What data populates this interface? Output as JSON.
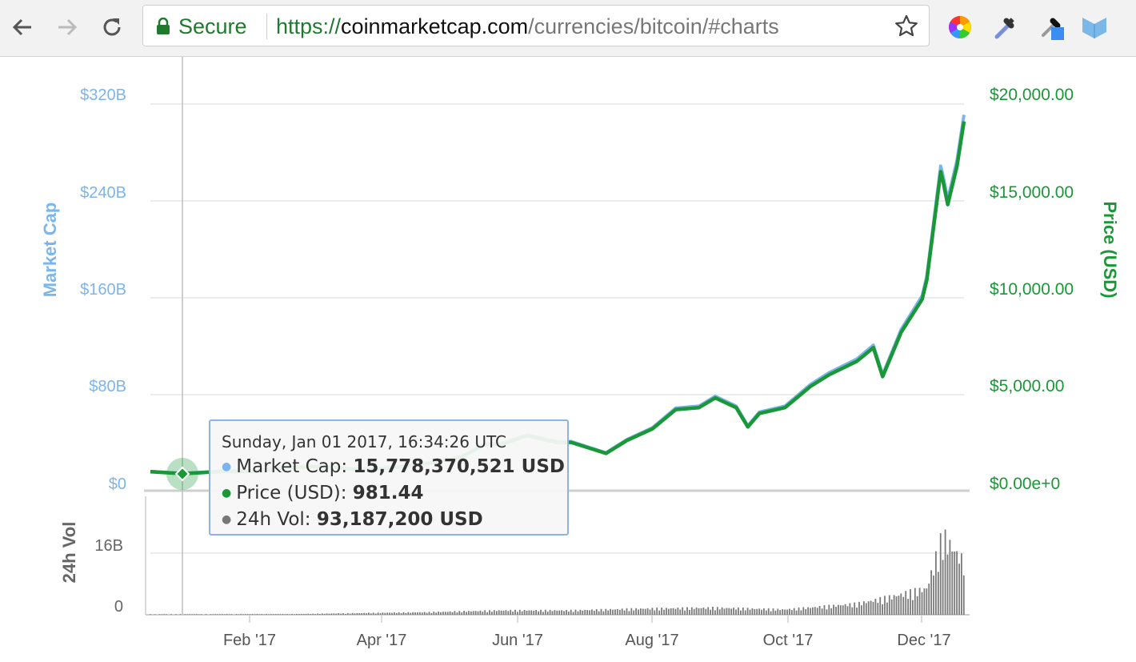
{
  "browser": {
    "secure_label": "Secure",
    "url_scheme": "https://",
    "url_host": "coinmarketcap.com",
    "url_path": "/currencies/bitcoin/#charts",
    "icons": [
      "back-icon",
      "forward-icon",
      "reload-icon",
      "lock-icon",
      "star-icon",
      "color-wheel-icon",
      "eyedropper-icon",
      "color-picker-icon",
      "bookmark-shield-icon"
    ]
  },
  "chart": {
    "left_axis_title": "Market Cap",
    "right_axis_title": "Price (USD)",
    "volume_axis_title": "24h Vol",
    "left_ticks": [
      "$320B",
      "$240B",
      "$160B",
      "$80B",
      "$0"
    ],
    "right_ticks": [
      "$20,000.00",
      "$15,000.00",
      "$10,000.00",
      "$5,000.00",
      "$0.00e+0"
    ],
    "volume_ticks": [
      "16B",
      "0"
    ],
    "x_ticks": [
      "Feb '17",
      "Apr '17",
      "Jun '17",
      "Aug '17",
      "Oct '17",
      "Dec '17"
    ],
    "colors": {
      "market_cap": "#7cb5ec",
      "price": "#1a9837",
      "volume": "#7a7a7a",
      "market_cap_axis": "#7cb5ec",
      "price_axis": "#1a9837"
    }
  },
  "tooltip": {
    "date": "Sunday, Jan 01 2017, 16:34:26 UTC",
    "market_cap_label": "Market Cap:",
    "market_cap_value": "15,778,370,521 USD",
    "price_label": "Price (USD):",
    "price_value": "981.44",
    "volume_label": "24h Vol:",
    "volume_value": "93,187,200 USD"
  },
  "chart_data": {
    "type": "line",
    "x_range": [
      "2017-01-01",
      "2017-12-17"
    ],
    "ylim_left": [
      0,
      320000000000
    ],
    "ylim_right": [
      0,
      20000
    ],
    "ylim_volume": [
      0,
      16000000000
    ],
    "grid": true,
    "series": [
      {
        "name": "Price (USD)",
        "x": [
          "2017-01-01",
          "2017-01-15",
          "2017-02-01",
          "2017-02-15",
          "2017-03-01",
          "2017-03-15",
          "2017-04-01",
          "2017-04-15",
          "2017-05-01",
          "2017-05-15",
          "2017-05-25",
          "2017-06-01",
          "2017-06-12",
          "2017-06-25",
          "2017-07-01",
          "2017-07-16",
          "2017-07-25",
          "2017-08-05",
          "2017-08-15",
          "2017-08-25",
          "2017-09-01",
          "2017-09-10",
          "2017-09-15",
          "2017-09-20",
          "2017-10-01",
          "2017-10-12",
          "2017-10-20",
          "2017-11-01",
          "2017-11-08",
          "2017-11-12",
          "2017-11-20",
          "2017-11-29",
          "2017-12-01",
          "2017-12-07",
          "2017-12-08",
          "2017-12-10",
          "2017-12-14",
          "2017-12-17"
        ],
        "values": [
          981,
          880,
          1000,
          1000,
          1200,
          1250,
          1080,
          1180,
          1420,
          1750,
          2400,
          2400,
          2850,
          2500,
          2500,
          1930,
          2600,
          3200,
          4200,
          4300,
          4800,
          4300,
          3300,
          4000,
          4300,
          5400,
          6000,
          6700,
          7400,
          5900,
          8200,
          9900,
          10900,
          16500,
          16000,
          14800,
          16800,
          19100
        ]
      }
    ],
    "volume": {
      "x": [
        "2017-01-01",
        "2017-03-01",
        "2017-05-01",
        "2017-06-01",
        "2017-07-01",
        "2017-08-01",
        "2017-09-01",
        "2017-10-01",
        "2017-11-01",
        "2017-11-15",
        "2017-12-01",
        "2017-12-08",
        "2017-12-17"
      ],
      "values": [
        100000000,
        150000000,
        600000000,
        1000000000,
        1000000000,
        1400000000,
        1600000000,
        1200000000,
        2500000000,
        4000000000,
        6000000000,
        18000000000,
        12000000000
      ]
    }
  }
}
